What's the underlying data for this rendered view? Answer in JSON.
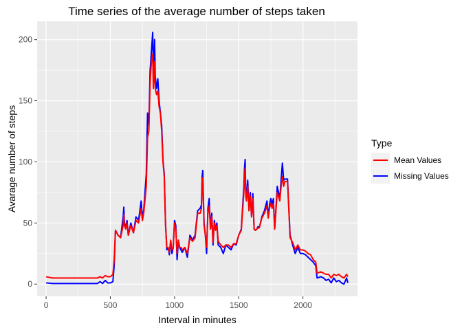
{
  "chart_data": {
    "type": "line",
    "title": "Time series of the average number of steps taken",
    "xlabel": "Interval in minutes",
    "ylabel": "Avarage number of steps",
    "xlim": [
      -70,
      2425
    ],
    "ylim": [
      -10,
      215
    ],
    "x_ticks": [
      0,
      500,
      1000,
      1500,
      2000
    ],
    "y_ticks": [
      0,
      50,
      100,
      150,
      200
    ],
    "x_tick_labels": [
      "0",
      "500",
      "1000",
      "1500",
      "2000"
    ],
    "y_tick_labels": [
      "0",
      "50",
      "100",
      "150",
      "200"
    ],
    "grid": true,
    "legend": {
      "title": "Type",
      "position": "right"
    },
    "series": [
      {
        "name": "Missing Values",
        "color": "#0000ff",
        "points": [
          [
            0,
            1
          ],
          [
            50,
            0.5
          ],
          [
            100,
            0.5
          ],
          [
            200,
            0.5
          ],
          [
            300,
            0.5
          ],
          [
            400,
            0.5
          ],
          [
            420,
            2
          ],
          [
            440,
            0.5
          ],
          [
            460,
            3
          ],
          [
            480,
            1
          ],
          [
            500,
            1
          ],
          [
            520,
            2
          ],
          [
            530,
            15
          ],
          [
            540,
            44
          ],
          [
            560,
            40
          ],
          [
            580,
            38
          ],
          [
            600,
            55
          ],
          [
            605,
            63
          ],
          [
            610,
            50
          ],
          [
            620,
            47
          ],
          [
            630,
            52
          ],
          [
            640,
            40
          ],
          [
            660,
            50
          ],
          [
            680,
            42
          ],
          [
            700,
            55
          ],
          [
            720,
            52
          ],
          [
            740,
            68
          ],
          [
            750,
            55
          ],
          [
            760,
            60
          ],
          [
            780,
            90
          ],
          [
            790,
            140
          ],
          [
            800,
            130
          ],
          [
            810,
            175
          ],
          [
            820,
            190
          ],
          [
            830,
            206
          ],
          [
            835,
            180
          ],
          [
            840,
            178
          ],
          [
            845,
            200
          ],
          [
            850,
            170
          ],
          [
            860,
            160
          ],
          [
            870,
            168
          ],
          [
            880,
            150
          ],
          [
            890,
            140
          ],
          [
            900,
            130
          ],
          [
            910,
            102
          ],
          [
            920,
            90
          ],
          [
            930,
            50
          ],
          [
            940,
            28
          ],
          [
            950,
            30
          ],
          [
            960,
            24
          ],
          [
            970,
            35
          ],
          [
            980,
            25
          ],
          [
            990,
            30
          ],
          [
            1000,
            52
          ],
          [
            1010,
            48
          ],
          [
            1020,
            20
          ],
          [
            1030,
            35
          ],
          [
            1040,
            30
          ],
          [
            1050,
            28
          ],
          [
            1060,
            26
          ],
          [
            1080,
            30
          ],
          [
            1100,
            22
          ],
          [
            1120,
            40
          ],
          [
            1140,
            36
          ],
          [
            1160,
            40
          ],
          [
            1180,
            60
          ],
          [
            1200,
            62
          ],
          [
            1210,
            65
          ],
          [
            1215,
            88
          ],
          [
            1220,
            93
          ],
          [
            1225,
            70
          ],
          [
            1230,
            50
          ],
          [
            1240,
            40
          ],
          [
            1250,
            25
          ],
          [
            1260,
            62
          ],
          [
            1270,
            70
          ],
          [
            1280,
            45
          ],
          [
            1290,
            58
          ],
          [
            1300,
            32
          ],
          [
            1310,
            52
          ],
          [
            1320,
            45
          ],
          [
            1330,
            50
          ],
          [
            1340,
            32
          ],
          [
            1360,
            30
          ],
          [
            1380,
            25
          ],
          [
            1400,
            32
          ],
          [
            1420,
            30
          ],
          [
            1440,
            28
          ],
          [
            1460,
            33
          ],
          [
            1480,
            32
          ],
          [
            1500,
            40
          ],
          [
            1520,
            45
          ],
          [
            1540,
            80
          ],
          [
            1545,
            95
          ],
          [
            1550,
            102
          ],
          [
            1555,
            75
          ],
          [
            1560,
            70
          ],
          [
            1570,
            85
          ],
          [
            1580,
            60
          ],
          [
            1590,
            75
          ],
          [
            1600,
            55
          ],
          [
            1610,
            74
          ],
          [
            1620,
            45
          ],
          [
            1630,
            44
          ],
          [
            1640,
            45
          ],
          [
            1650,
            47
          ],
          [
            1660,
            46
          ],
          [
            1680,
            55
          ],
          [
            1700,
            60
          ],
          [
            1720,
            68
          ],
          [
            1730,
            55
          ],
          [
            1740,
            65
          ],
          [
            1750,
            70
          ],
          [
            1760,
            65
          ],
          [
            1770,
            70
          ],
          [
            1780,
            45
          ],
          [
            1790,
            62
          ],
          [
            1800,
            80
          ],
          [
            1820,
            70
          ],
          [
            1830,
            85
          ],
          [
            1840,
            99
          ],
          [
            1850,
            85
          ],
          [
            1860,
            86
          ],
          [
            1880,
            86
          ],
          [
            1900,
            40
          ],
          [
            1920,
            32
          ],
          [
            1940,
            25
          ],
          [
            1960,
            30
          ],
          [
            1980,
            25
          ],
          [
            2000,
            25
          ],
          [
            2020,
            24
          ],
          [
            2040,
            22
          ],
          [
            2060,
            20
          ],
          [
            2080,
            18
          ],
          [
            2100,
            15
          ],
          [
            2110,
            5
          ],
          [
            2140,
            6
          ],
          [
            2160,
            5
          ],
          [
            2180,
            3
          ],
          [
            2200,
            4
          ],
          [
            2220,
            1
          ],
          [
            2240,
            5
          ],
          [
            2260,
            2
          ],
          [
            2280,
            3
          ],
          [
            2300,
            1
          ],
          [
            2320,
            0
          ],
          [
            2340,
            5
          ],
          [
            2350,
            1
          ]
        ]
      },
      {
        "name": "Mean Values",
        "color": "#ff0000",
        "points": [
          [
            0,
            6
          ],
          [
            50,
            5
          ],
          [
            100,
            5
          ],
          [
            200,
            5
          ],
          [
            300,
            5
          ],
          [
            400,
            5
          ],
          [
            420,
            6
          ],
          [
            440,
            5
          ],
          [
            460,
            7
          ],
          [
            480,
            6
          ],
          [
            500,
            6
          ],
          [
            520,
            8
          ],
          [
            530,
            20
          ],
          [
            540,
            44
          ],
          [
            560,
            40
          ],
          [
            580,
            38
          ],
          [
            600,
            48
          ],
          [
            605,
            57
          ],
          [
            610,
            48
          ],
          [
            620,
            45
          ],
          [
            630,
            50
          ],
          [
            640,
            40
          ],
          [
            660,
            48
          ],
          [
            680,
            42
          ],
          [
            700,
            52
          ],
          [
            720,
            50
          ],
          [
            740,
            62
          ],
          [
            750,
            52
          ],
          [
            760,
            58
          ],
          [
            780,
            80
          ],
          [
            790,
            120
          ],
          [
            800,
            125
          ],
          [
            810,
            165
          ],
          [
            820,
            182
          ],
          [
            830,
            188
          ],
          [
            835,
            160
          ],
          [
            840,
            170
          ],
          [
            845,
            182
          ],
          [
            850,
            160
          ],
          [
            860,
            155
          ],
          [
            870,
            158
          ],
          [
            880,
            145
          ],
          [
            890,
            140
          ],
          [
            900,
            125
          ],
          [
            910,
            100
          ],
          [
            920,
            88
          ],
          [
            930,
            48
          ],
          [
            940,
            30
          ],
          [
            950,
            30
          ],
          [
            960,
            26
          ],
          [
            970,
            36
          ],
          [
            980,
            28
          ],
          [
            990,
            30
          ],
          [
            1000,
            50
          ],
          [
            1010,
            45
          ],
          [
            1020,
            25
          ],
          [
            1030,
            36
          ],
          [
            1040,
            30
          ],
          [
            1050,
            30
          ],
          [
            1060,
            28
          ],
          [
            1080,
            30
          ],
          [
            1100,
            25
          ],
          [
            1120,
            38
          ],
          [
            1140,
            35
          ],
          [
            1160,
            38
          ],
          [
            1180,
            58
          ],
          [
            1200,
            58
          ],
          [
            1210,
            62
          ],
          [
            1215,
            85
          ],
          [
            1220,
            87
          ],
          [
            1225,
            68
          ],
          [
            1230,
            48
          ],
          [
            1240,
            40
          ],
          [
            1250,
            30
          ],
          [
            1260,
            58
          ],
          [
            1270,
            64
          ],
          [
            1280,
            45
          ],
          [
            1290,
            55
          ],
          [
            1300,
            34
          ],
          [
            1310,
            50
          ],
          [
            1320,
            44
          ],
          [
            1330,
            48
          ],
          [
            1340,
            35
          ],
          [
            1360,
            32
          ],
          [
            1380,
            30
          ],
          [
            1400,
            32
          ],
          [
            1420,
            32
          ],
          [
            1440,
            30
          ],
          [
            1460,
            33
          ],
          [
            1480,
            33
          ],
          [
            1500,
            40
          ],
          [
            1520,
            44
          ],
          [
            1540,
            75
          ],
          [
            1545,
            88
          ],
          [
            1550,
            95
          ],
          [
            1555,
            72
          ],
          [
            1560,
            68
          ],
          [
            1570,
            80
          ],
          [
            1580,
            60
          ],
          [
            1590,
            72
          ],
          [
            1600,
            55
          ],
          [
            1610,
            70
          ],
          [
            1620,
            45
          ],
          [
            1630,
            44
          ],
          [
            1640,
            45
          ],
          [
            1650,
            46
          ],
          [
            1660,
            46
          ],
          [
            1680,
            54
          ],
          [
            1700,
            58
          ],
          [
            1720,
            64
          ],
          [
            1730,
            54
          ],
          [
            1740,
            62
          ],
          [
            1750,
            66
          ],
          [
            1760,
            62
          ],
          [
            1770,
            66
          ],
          [
            1780,
            45
          ],
          [
            1790,
            60
          ],
          [
            1800,
            75
          ],
          [
            1820,
            68
          ],
          [
            1830,
            80
          ],
          [
            1840,
            88
          ],
          [
            1850,
            80
          ],
          [
            1860,
            84
          ],
          [
            1880,
            84
          ],
          [
            1900,
            38
          ],
          [
            1920,
            34
          ],
          [
            1940,
            28
          ],
          [
            1960,
            32
          ],
          [
            1980,
            28
          ],
          [
            2000,
            28
          ],
          [
            2020,
            27
          ],
          [
            2040,
            25
          ],
          [
            2060,
            24
          ],
          [
            2080,
            20
          ],
          [
            2100,
            18
          ],
          [
            2110,
            9
          ],
          [
            2140,
            10
          ],
          [
            2160,
            9
          ],
          [
            2180,
            8
          ],
          [
            2200,
            8
          ],
          [
            2220,
            5
          ],
          [
            2240,
            8
          ],
          [
            2260,
            7
          ],
          [
            2280,
            8
          ],
          [
            2300,
            6
          ],
          [
            2320,
            5
          ],
          [
            2340,
            8
          ],
          [
            2350,
            6
          ]
        ]
      }
    ]
  }
}
